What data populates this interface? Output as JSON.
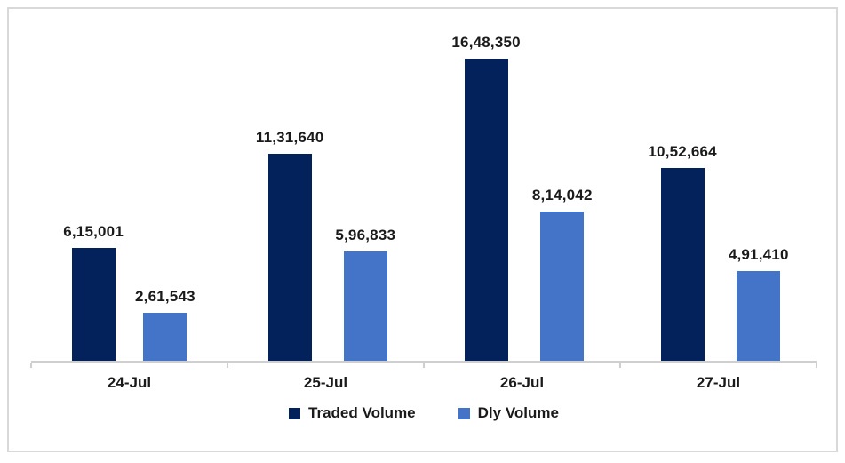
{
  "chart_data": {
    "type": "bar",
    "title": "",
    "xlabel": "",
    "ylabel": "",
    "categories": [
      "24-Jul",
      "25-Jul",
      "26-Jul",
      "27-Jul"
    ],
    "series": [
      {
        "name": "Traded Volume",
        "color": "#03225c",
        "values": [
          615001,
          1131640,
          1648350,
          1052664
        ],
        "labels": [
          "6,15,001",
          "11,31,640",
          "16,48,350",
          "10,52,664"
        ]
      },
      {
        "name": "Dly Volume",
        "color": "#4474c7",
        "values": [
          261543,
          596833,
          814042,
          491410
        ],
        "labels": [
          "2,61,543",
          "5,96,833",
          "8,14,042",
          "4,91,410"
        ]
      }
    ],
    "ylim": [
      0,
      1648350
    ],
    "grid": false,
    "axis_visible": "x-only",
    "data_labels": true,
    "legend_position": "bottom"
  },
  "colors": {
    "frame_border": "#d9d9d9",
    "axis_line": "#cfcfcf",
    "label_text": "#1a1a1a",
    "background": "#ffffff"
  }
}
